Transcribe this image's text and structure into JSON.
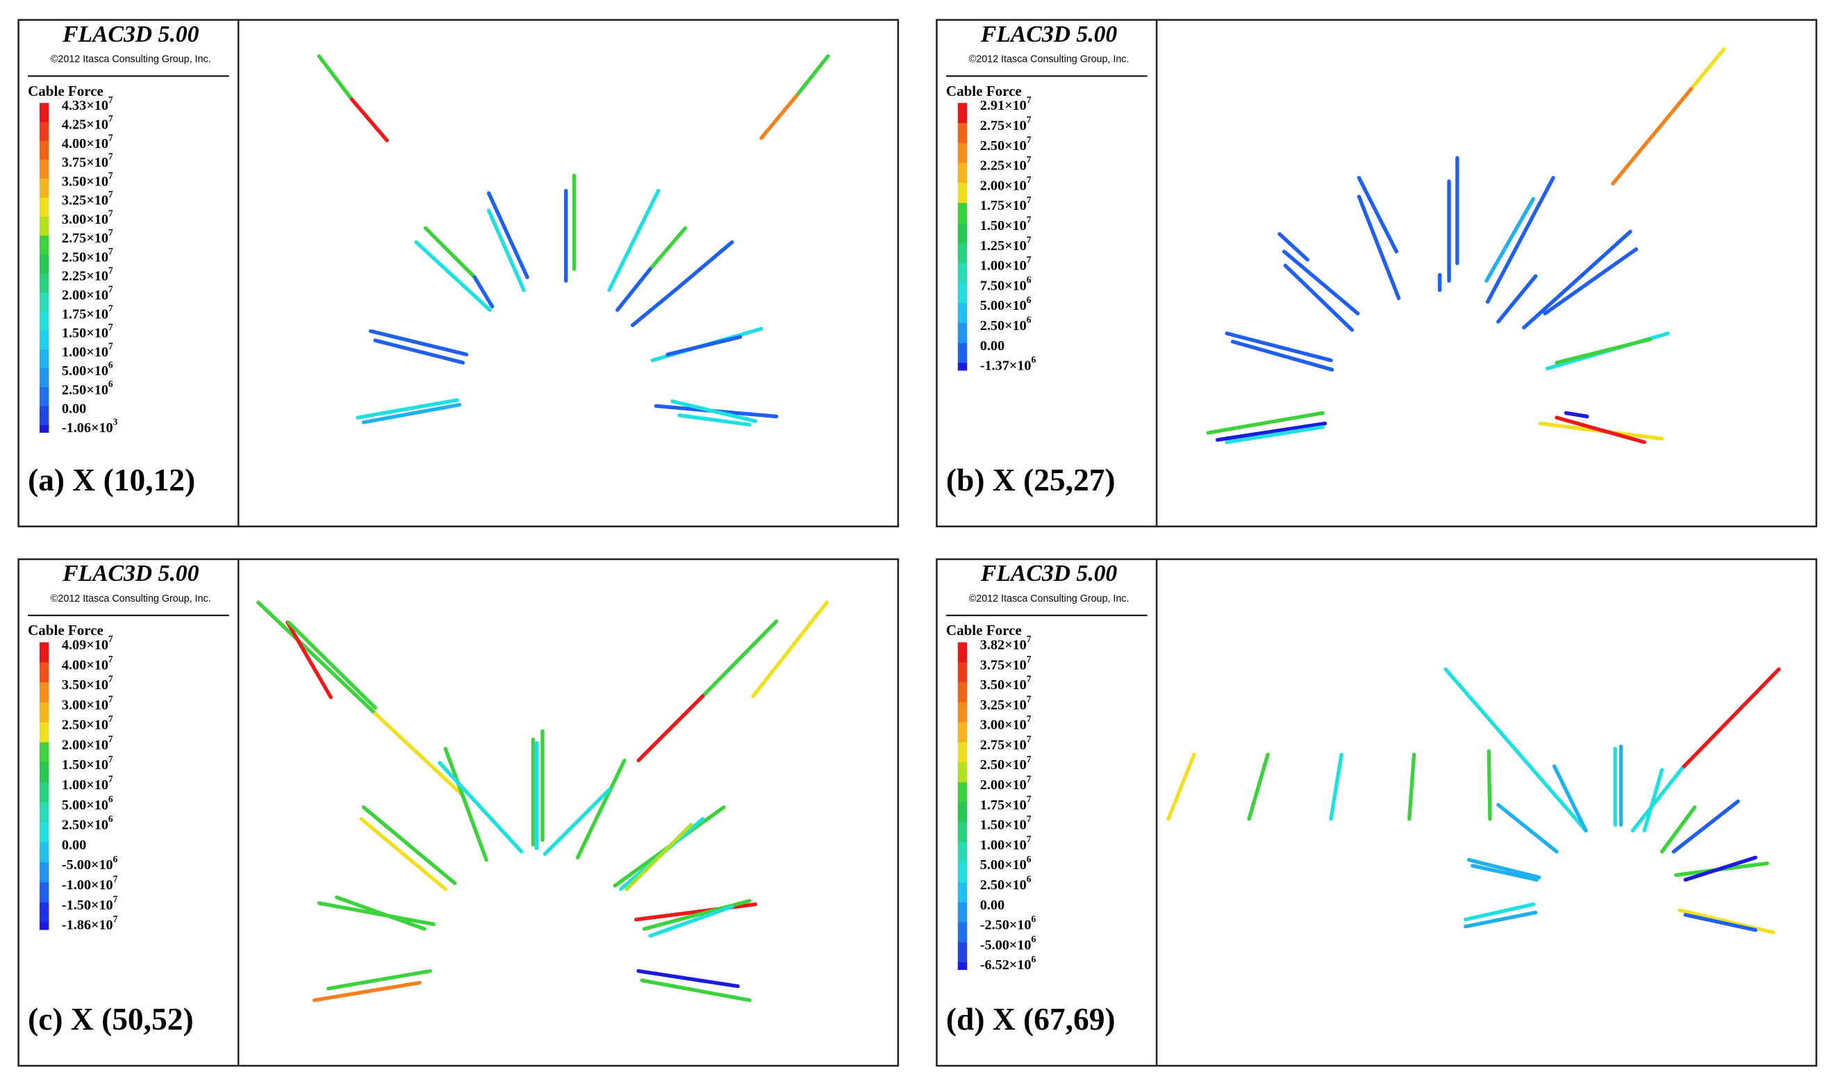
{
  "panels": [
    {
      "title": "FLAC3D 5.00",
      "copyright": "©2012 Itasca Consulting Group, Inc.",
      "legend_title": "Cable Force",
      "legend": [
        {
          "text": "4.33×10",
          "sup": "7",
          "color": "#e81818"
        },
        {
          "text": "4.25×10",
          "sup": "7",
          "color": "#f03c18"
        },
        {
          "text": "4.00×10",
          "sup": "7",
          "color": "#f06418"
        },
        {
          "text": "3.75×10",
          "sup": "7",
          "color": "#f58c1c"
        },
        {
          "text": "3.50×10",
          "sup": "7",
          "color": "#f8b41c"
        },
        {
          "text": "3.25×10",
          "sup": "7",
          "color": "#f0e01c"
        },
        {
          "text": "3.00×10",
          "sup": "7",
          "color": "#b4e01c"
        },
        {
          "text": "2.75×10",
          "sup": "7",
          "color": "#3cd23c"
        },
        {
          "text": "2.50×10",
          "sup": "7",
          "color": "#28c850"
        },
        {
          "text": "2.25×10",
          "sup": "7",
          "color": "#28d27c"
        },
        {
          "text": "2.00×10",
          "sup": "7",
          "color": "#28dcb4"
        },
        {
          "text": "1.75×10",
          "sup": "7",
          "color": "#20e0e0"
        },
        {
          "text": "1.50×10",
          "sup": "7",
          "color": "#20d0f0"
        },
        {
          "text": "1.00×10",
          "sup": "7",
          "color": "#20b4f0"
        },
        {
          "text": "5.00×10",
          "sup": "6",
          "color": "#2096f0"
        },
        {
          "text": "2.50×10",
          "sup": "6",
          "color": "#2070f0"
        },
        {
          "text": "0.00",
          "color": "#2046e8"
        },
        {
          "text": "-1.06×10",
          "sup": "3",
          "color": "#1a1ae0"
        }
      ],
      "caption": "(a) X (10,12)"
    },
    {
      "title": "FLAC3D 5.00",
      "copyright": "©2012 Itasca Consulting Group, Inc.",
      "legend_title": "Cable Force",
      "legend": [
        {
          "text": "2.91×10",
          "sup": "7",
          "color": "#e81818"
        },
        {
          "text": "2.75×10",
          "sup": "7",
          "color": "#f06418"
        },
        {
          "text": "2.50×10",
          "sup": "7",
          "color": "#f58c1c"
        },
        {
          "text": "2.25×10",
          "sup": "7",
          "color": "#f8b41c"
        },
        {
          "text": "2.00×10",
          "sup": "7",
          "color": "#f0e01c"
        },
        {
          "text": "1.75×10",
          "sup": "7",
          "color": "#3cd23c"
        },
        {
          "text": "1.50×10",
          "sup": "7",
          "color": "#28c850"
        },
        {
          "text": "1.25×10",
          "sup": "7",
          "color": "#28d27c"
        },
        {
          "text": "1.00×10",
          "sup": "7",
          "color": "#28dcb4"
        },
        {
          "text": "7.50×10",
          "sup": "6",
          "color": "#20e0e0"
        },
        {
          "text": "5.00×10",
          "sup": "6",
          "color": "#20c0f0"
        },
        {
          "text": "2.50×10",
          "sup": "6",
          "color": "#2096f0"
        },
        {
          "text": "0.00",
          "color": "#2060f0"
        },
        {
          "text": "-1.37×10",
          "sup": "6",
          "color": "#1a1ae0"
        }
      ],
      "caption": "(b) X (25,27)"
    },
    {
      "title": "FLAC3D 5.00",
      "copyright": "©2012 Itasca Consulting Group, Inc.",
      "legend_title": "Cable Force",
      "legend": [
        {
          "text": "4.09×10",
          "sup": "7",
          "color": "#e81818"
        },
        {
          "text": "4.00×10",
          "sup": "7",
          "color": "#f05018"
        },
        {
          "text": "3.50×10",
          "sup": "7",
          "color": "#f58c1c"
        },
        {
          "text": "3.00×10",
          "sup": "7",
          "color": "#f8b41c"
        },
        {
          "text": "2.50×10",
          "sup": "7",
          "color": "#f0e01c"
        },
        {
          "text": "2.00×10",
          "sup": "7",
          "color": "#3cd23c"
        },
        {
          "text": "1.50×10",
          "sup": "7",
          "color": "#28c850"
        },
        {
          "text": "1.00×10",
          "sup": "7",
          "color": "#28d27c"
        },
        {
          "text": "5.00×10",
          "sup": "6",
          "color": "#28dcb4"
        },
        {
          "text": "2.50×10",
          "sup": "6",
          "color": "#20e0e0"
        },
        {
          "text": "0.00",
          "color": "#20c0f0"
        },
        {
          "text": "-5.00×10",
          "sup": "6",
          "color": "#2096f0"
        },
        {
          "text": "-1.00×10",
          "sup": "7",
          "color": "#2060f0"
        },
        {
          "text": "-1.50×10",
          "sup": "7",
          "color": "#2030e8"
        },
        {
          "text": "-1.86×10",
          "sup": "7",
          "color": "#1a1ae0"
        }
      ],
      "caption": "(c) X (50,52)"
    },
    {
      "title": "FLAC3D 5.00",
      "copyright": "©2012 Itasca Consulting Group, Inc.",
      "legend_title": "Cable Force",
      "legend": [
        {
          "text": "3.82×10",
          "sup": "7",
          "color": "#e81818"
        },
        {
          "text": "3.75×10",
          "sup": "7",
          "color": "#f03c18"
        },
        {
          "text": "3.50×10",
          "sup": "7",
          "color": "#f06418"
        },
        {
          "text": "3.25×10",
          "sup": "7",
          "color": "#f58c1c"
        },
        {
          "text": "3.00×10",
          "sup": "7",
          "color": "#f8b41c"
        },
        {
          "text": "2.75×10",
          "sup": "7",
          "color": "#f0e01c"
        },
        {
          "text": "2.50×10",
          "sup": "7",
          "color": "#b4e01c"
        },
        {
          "text": "2.00×10",
          "sup": "7",
          "color": "#3cd23c"
        },
        {
          "text": "1.75×10",
          "sup": "7",
          "color": "#28c850"
        },
        {
          "text": "1.50×10",
          "sup": "7",
          "color": "#28d27c"
        },
        {
          "text": "1.00×10",
          "sup": "7",
          "color": "#28dcb4"
        },
        {
          "text": "5.00×10",
          "sup": "6",
          "color": "#20e0e0"
        },
        {
          "text": "2.50×10",
          "sup": "6",
          "color": "#20c0f0"
        },
        {
          "text": "0.00",
          "color": "#2096f0"
        },
        {
          "text": "-2.50×10",
          "sup": "6",
          "color": "#2070f0"
        },
        {
          "text": "-5.00×10",
          "sup": "6",
          "color": "#2046e8"
        },
        {
          "text": "-6.52×10",
          "sup": "6",
          "color": "#1a1ae0"
        }
      ],
      "caption": "(d) X (67,69)"
    }
  ]
}
